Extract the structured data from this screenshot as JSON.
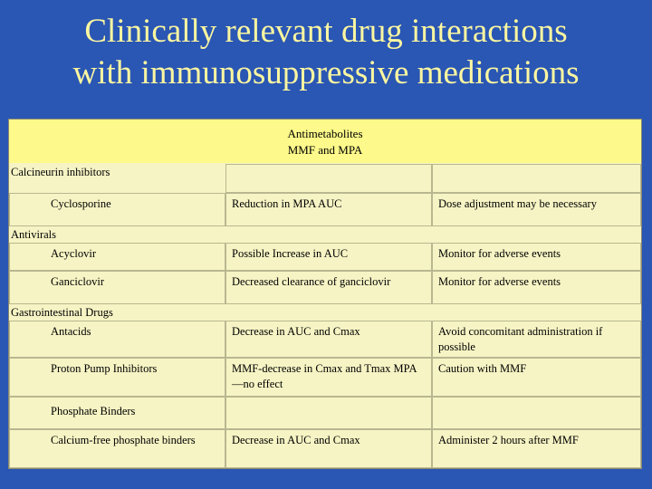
{
  "slide": {
    "title_line1": "Clinically relevant drug interactions",
    "title_line2": "with immunosuppressive medications"
  },
  "table": {
    "header_line1": "Antimetabolites",
    "header_line2": "MMF and MPA",
    "groups": [
      {
        "name": "Calcineurin inhibitors",
        "rows": [
          {
            "drug": "Cyclosporine",
            "effect": "Reduction in MPA AUC",
            "recommendation": "Dose adjustment may be necessary"
          }
        ]
      },
      {
        "name": "Antivirals",
        "rows": [
          {
            "drug": "Acyclovir",
            "effect": "Possible Increase in AUC",
            "recommendation": "Monitor for adverse events"
          },
          {
            "drug": "Ganciclovir",
            "effect": "Decreased clearance of ganciclovir",
            "recommendation": "Monitor for adverse events"
          }
        ]
      },
      {
        "name": "Gastrointestinal Drugs",
        "rows": [
          {
            "drug": "Antacids",
            "effect": "Decrease in AUC and Cmax",
            "recommendation": "Avoid concomitant administration if possible"
          },
          {
            "drug": "Proton Pump Inhibitors",
            "effect": "MMF-decrease in Cmax and Tmax MPA—no effect",
            "recommendation": "Caution with MMF"
          },
          {
            "drug": "Phosphate Binders",
            "effect": "",
            "recommendation": ""
          },
          {
            "drug": "Calcium-free phosphate binders",
            "effect": "Decrease in AUC and Cmax",
            "recommendation": "Administer 2 hours after MMF"
          }
        ]
      }
    ]
  }
}
